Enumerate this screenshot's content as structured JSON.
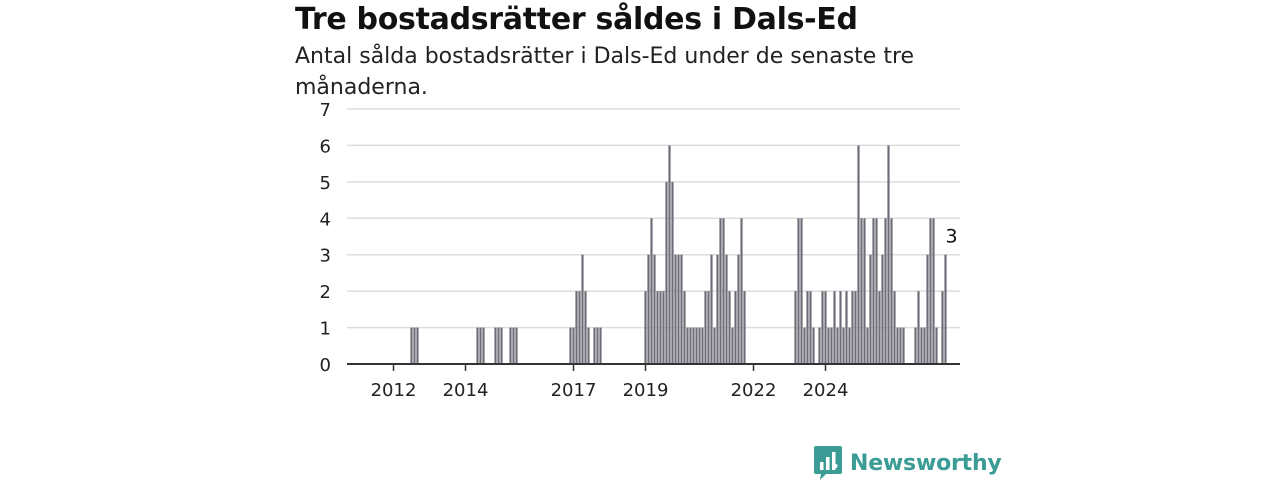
{
  "title": "Tre bostadsrätter såldes i Dals-Ed",
  "subtitle": "Antal sålda bostadsrätter i Dals-Ed under de senaste tre månaderna.",
  "brand": {
    "name": "Newsworthy",
    "color": "#3a9c94",
    "icon": "newsworthy-logo-icon"
  },
  "colors": {
    "bars": "#6e6d78",
    "highlight": "#1a9e8f",
    "grid": "#dddddd",
    "axis": "#333333"
  },
  "chart_data": {
    "type": "bar",
    "title": "Tre bostadsrätter såldes i Dals-Ed",
    "xlabel": "",
    "ylabel": "",
    "ylim": [
      0,
      7
    ],
    "yticks": [
      "0",
      "1",
      "2",
      "3",
      "4",
      "5",
      "6",
      "7"
    ],
    "grid": true,
    "xticks": [
      {
        "label": "2012",
        "year": 2012
      },
      {
        "label": "2014",
        "year": 2014
      },
      {
        "label": "2017",
        "year": 2017
      },
      {
        "label": "2019",
        "year": 2019
      },
      {
        "label": "2022",
        "year": 2022
      },
      {
        "label": "2024",
        "year": 2024
      }
    ],
    "start_period": "2011-07",
    "values": [
      0,
      0,
      0,
      0,
      0,
      0,
      0,
      0,
      0,
      0,
      0,
      0,
      1,
      1,
      1,
      0,
      0,
      0,
      0,
      0,
      0,
      0,
      0,
      0,
      0,
      0,
      0,
      0,
      0,
      0,
      0,
      0,
      0,
      0,
      1,
      1,
      1,
      0,
      0,
      0,
      1,
      1,
      1,
      0,
      0,
      1,
      1,
      1,
      0,
      0,
      0,
      0,
      0,
      0,
      0,
      0,
      0,
      0,
      0,
      0,
      0,
      0,
      0,
      0,
      0,
      1,
      1,
      2,
      2,
      3,
      2,
      1,
      0,
      1,
      1,
      1,
      0,
      0,
      0,
      0,
      0,
      0,
      0,
      0,
      0,
      0,
      0,
      0,
      0,
      0,
      2,
      3,
      4,
      3,
      2,
      2,
      2,
      5,
      6,
      5,
      3,
      3,
      3,
      2,
      1,
      1,
      1,
      1,
      1,
      1,
      2,
      2,
      3,
      1,
      3,
      4,
      4,
      3,
      2,
      1,
      2,
      3,
      4,
      2,
      0,
      0,
      0,
      0,
      0,
      0,
      0,
      0,
      0,
      0,
      0,
      0,
      0,
      0,
      0,
      0,
      2,
      4,
      4,
      1,
      2,
      2,
      1,
      0,
      1,
      2,
      2,
      1,
      1,
      2,
      1,
      2,
      1,
      2,
      1,
      2,
      2,
      6,
      4,
      4,
      1,
      3,
      4,
      4,
      2,
      3,
      4,
      6,
      4,
      2,
      1,
      1,
      1,
      0,
      0,
      0,
      1,
      2,
      1,
      1,
      3,
      4,
      4,
      1,
      0,
      2,
      3
    ],
    "highlight": {
      "index": 192,
      "value": 3,
      "label": "3"
    }
  }
}
